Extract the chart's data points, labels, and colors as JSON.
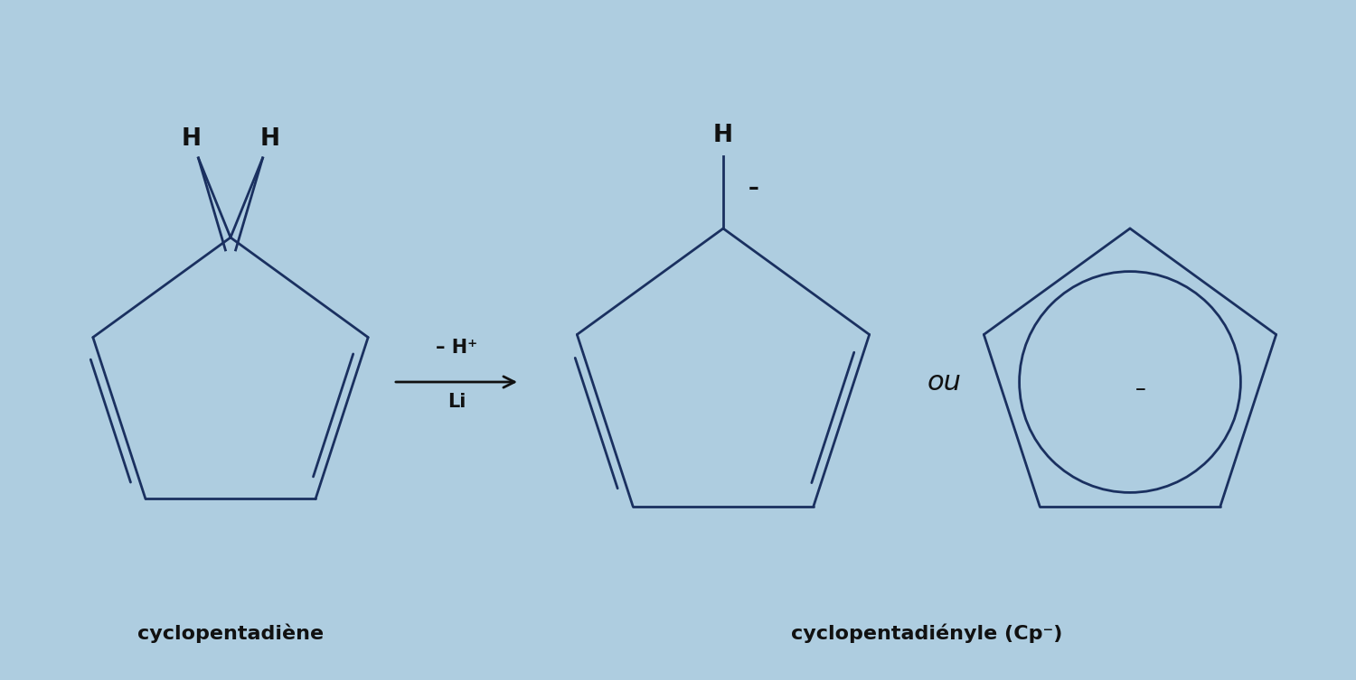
{
  "bg_color": "#aecde0",
  "line_color": "#1a3060",
  "text_color": "#111111",
  "arrow_color": "#111111",
  "label_cyclopentadiene": "cyclopentadiène",
  "label_cyclopentadienyle": "cyclopentadiényle (Cp⁻)",
  "label_reaction_above": "– H⁺",
  "label_reaction_below": "Li",
  "label_ou": "ou",
  "lw": 2.0,
  "figsize": [
    15.0,
    7.53
  ],
  "dpi": 100
}
